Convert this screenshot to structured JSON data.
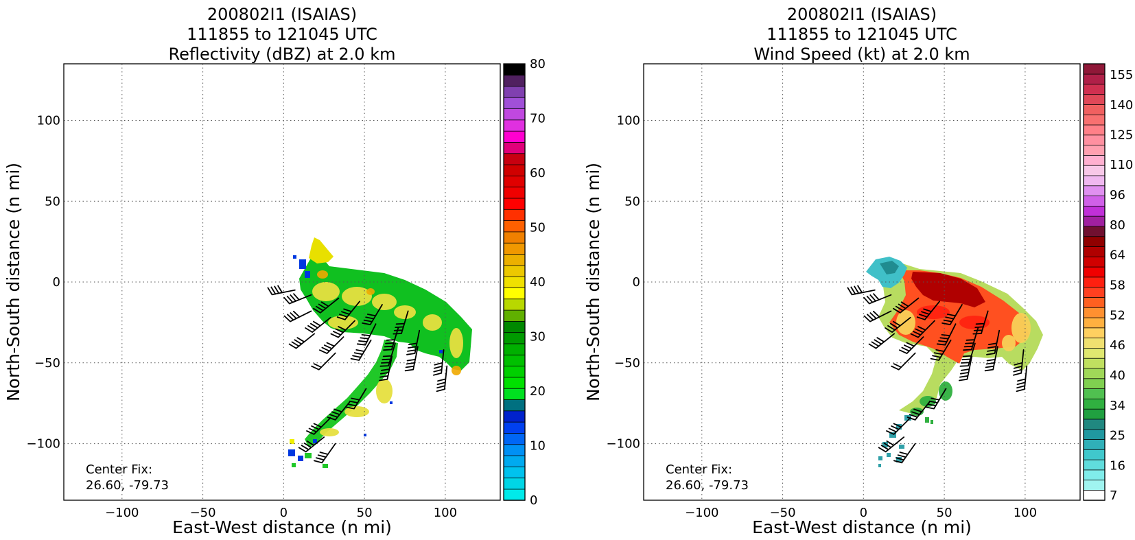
{
  "panels": [
    {
      "title_lines": [
        "200802I1 (ISAIAS)",
        "111855 to 121045 UTC",
        "Reflectivity (dBZ) at 2.0 km"
      ],
      "xlabel": "East-West distance (n mi)",
      "ylabel": "North-South distance (n mi)",
      "xticks": [
        "−100",
        "−50",
        "0",
        "50",
        "100"
      ],
      "yticks": [
        "100",
        "50",
        "0",
        "−50",
        "−100"
      ],
      "note_lines": [
        "Center Fix:",
        "26.60, -79.73"
      ],
      "colorbar": {
        "labels": [
          "80",
          "70",
          "60",
          "50",
          "40",
          "30",
          "20",
          "10",
          "0"
        ],
        "colors": [
          "#00eaea",
          "#00d6e6",
          "#00c2ee",
          "#00aaf0",
          "#0090f5",
          "#0066f5",
          "#0040f0",
          "#0022cc",
          "#007080",
          "#00e020",
          "#00e000",
          "#00d000",
          "#00c000",
          "#00b000",
          "#009a00",
          "#008800",
          "#60b000",
          "#b8d800",
          "#ffff00",
          "#f0e000",
          "#ecc800",
          "#ecb000",
          "#f09800",
          "#f08000",
          "#ff6000",
          "#ff3000",
          "#ff0000",
          "#f00000",
          "#e00000",
          "#d00000",
          "#c80010",
          "#e0007a",
          "#ff00d0",
          "#e030e0",
          "#c048e0",
          "#a050d8",
          "#8040b0",
          "#502060",
          "#000000"
        ]
      },
      "chart_data": {
        "type": "heatmap",
        "title": "200802I1 (ISAIAS) 111855 to 121045 UTC Reflectivity (dBZ) at 2.0 km",
        "variable": "Reflectivity (dBZ)",
        "level": "2.0 km",
        "xlim": [
          -135,
          135
        ],
        "ylim": [
          -135,
          135
        ],
        "grid": true,
        "colorbar_range": [
          0,
          80
        ],
        "colorbar_ticks": [
          0,
          10,
          20,
          30,
          40,
          50,
          60,
          70,
          80
        ],
        "center_fix": [
          26.6,
          -79.73
        ],
        "echo_region_approx": {
          "main_body": {
            "x": [
              20,
              110
            ],
            "y": [
              -45,
              10
            ]
          },
          "north_lobe_peak": {
            "x": 20,
            "y": 25
          },
          "southwest_arm": {
            "x": [
              5,
              70
            ],
            "y": [
              -120,
              -45
            ]
          }
        }
      }
    },
    {
      "title_lines": [
        "200802I1 (ISAIAS)",
        "111855 to 121045 UTC",
        "Wind Speed (kt) at 2.0 km"
      ],
      "xlabel": "East-West distance (n mi)",
      "ylabel": "North-South distance (n mi)",
      "xticks": [
        "−100",
        "−50",
        "0",
        "50",
        "100"
      ],
      "yticks": [
        "100",
        "50",
        "0",
        "−50",
        "−100"
      ],
      "note_lines": [
        "Center Fix:",
        "26.60, -79.73"
      ],
      "colorbar": {
        "labels": [
          "155",
          "140",
          "125",
          "110",
          "96",
          "80",
          "64",
          "58",
          "52",
          "46",
          "40",
          "34",
          "25",
          "16",
          "7"
        ],
        "colors": [
          "#ffffff",
          "#a0f4f0",
          "#80ecea",
          "#60dcdc",
          "#40c8cc",
          "#30b0b8",
          "#2098a0",
          "#208880",
          "#20a040",
          "#30b040",
          "#50c050",
          "#80d050",
          "#a0d858",
          "#c0e060",
          "#e0e870",
          "#f0e070",
          "#ffd060",
          "#ffb040",
          "#ff9030",
          "#ff6020",
          "#ff4020",
          "#ff2010",
          "#f00000",
          "#d00000",
          "#b00000",
          "#900000",
          "#701030",
          "#a020a0",
          "#c030d8",
          "#d060e8",
          "#e090f0",
          "#f0b8f0",
          "#f8c8e8",
          "#ffb0d0",
          "#ffa0b0",
          "#ff90a0",
          "#ff8088",
          "#f87070",
          "#f06060",
          "#e04858",
          "#d03050",
          "#b02048",
          "#901838"
        ]
      },
      "chart_data": {
        "type": "heatmap",
        "title": "200802I1 (ISAIAS) 111855 to 121045 UTC Wind Speed (kt) at 2.0 km",
        "variable": "Wind Speed (kt)",
        "level": "2.0 km",
        "xlim": [
          -135,
          135
        ],
        "ylim": [
          -135,
          135
        ],
        "grid": true,
        "colorbar_ticks": [
          7,
          16,
          25,
          34,
          40,
          46,
          52,
          58,
          64,
          80,
          96,
          110,
          125,
          140,
          155
        ],
        "center_fix": [
          26.6,
          -79.73
        ],
        "wind_region_approx": {
          "main_body": {
            "x": [
              15,
              112
            ],
            "y": [
              -55,
              10
            ]
          },
          "max_wind_area": {
            "x": [
              38,
              75
            ],
            "y": [
              -20,
              8
            ]
          },
          "southwest_arm": {
            "x": [
              12,
              70
            ],
            "y": [
              -112,
              -45
            ]
          }
        }
      }
    }
  ],
  "barbs": [
    {
      "x": 8,
      "y": -5,
      "dx": 1,
      "dy": 0.2,
      "flags": 4
    },
    {
      "x": 18,
      "y": -8,
      "dx": 1,
      "dy": 0.4,
      "flags": 4
    },
    {
      "x": 35,
      "y": -10,
      "dx": 1,
      "dy": 0.8,
      "flags": 4
    },
    {
      "x": 48,
      "y": -12,
      "dx": 0.8,
      "dy": 1,
      "flags": 4
    },
    {
      "x": 62,
      "y": -14,
      "dx": 0.6,
      "dy": 1,
      "flags": 4
    },
    {
      "x": 78,
      "y": -18,
      "dx": 0.3,
      "dy": 1,
      "flags": 4
    },
    {
      "x": 18,
      "y": -18,
      "dx": 1,
      "dy": 0.5,
      "flags": 4
    },
    {
      "x": 30,
      "y": -22,
      "dx": 1,
      "dy": 0.8,
      "flags": 4
    },
    {
      "x": 45,
      "y": -24,
      "dx": 1,
      "dy": 1,
      "flags": 4
    },
    {
      "x": 58,
      "y": -26,
      "dx": 0.5,
      "dy": 1,
      "flags": 4
    },
    {
      "x": 72,
      "y": -28,
      "dx": 0.3,
      "dy": 1,
      "flags": 4
    },
    {
      "x": 85,
      "y": -30,
      "dx": 0.2,
      "dy": 1,
      "flags": 4
    },
    {
      "x": 20,
      "y": -32,
      "dx": 1,
      "dy": 0.8,
      "flags": 4
    },
    {
      "x": 38,
      "y": -34,
      "dx": 1,
      "dy": 1,
      "flags": 4
    },
    {
      "x": 55,
      "y": -36,
      "dx": 0.6,
      "dy": 1,
      "flags": 4
    },
    {
      "x": 70,
      "y": -38,
      "dx": 0.3,
      "dy": 1,
      "flags": 4
    },
    {
      "x": 84,
      "y": -40,
      "dx": 0.2,
      "dy": 1,
      "flags": 4
    },
    {
      "x": 100,
      "y": -42,
      "dx": 0.1,
      "dy": 1,
      "flags": 4
    },
    {
      "x": 33,
      "y": -44,
      "dx": 1,
      "dy": 1,
      "flags": 2
    },
    {
      "x": 68,
      "y": -46,
      "dx": 0.2,
      "dy": 1,
      "flags": 4
    },
    {
      "x": 102,
      "y": -52,
      "dx": 0.1,
      "dy": 1,
      "flags": 4
    },
    {
      "x": 52,
      "y": -66,
      "dx": 0.6,
      "dy": 1,
      "flags": 4
    },
    {
      "x": 42,
      "y": -74,
      "dx": 0.8,
      "dy": 1,
      "flags": 4
    },
    {
      "x": 30,
      "y": -84,
      "dx": 1,
      "dy": 1,
      "flags": 4
    },
    {
      "x": 26,
      "y": -96,
      "dx": 1,
      "dy": 0.8,
      "flags": 4
    },
    {
      "x": 33,
      "y": -100,
      "dx": 0.7,
      "dy": 1,
      "flags": 4
    }
  ]
}
